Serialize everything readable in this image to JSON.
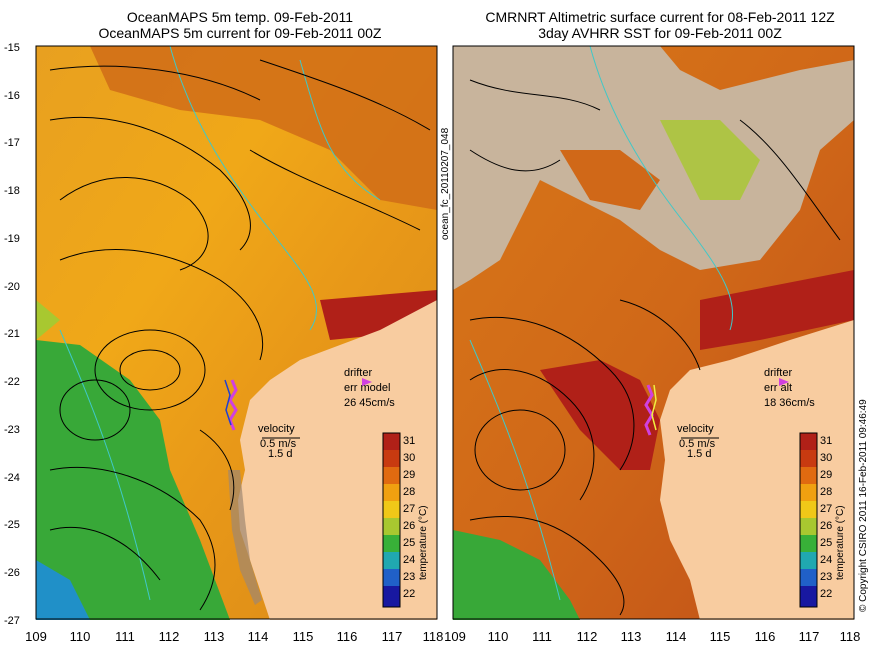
{
  "left_panel": {
    "title_line1": "OceanMAPS 5m temp. 09-Feb-2011",
    "title_line2": "OceanMAPS 5m current for 09-Feb-2011 00Z",
    "drifter_label": "drifter",
    "err_label": "err model",
    "err_value": "26 45cm/s",
    "velocity_label": "velocity",
    "velocity_scale": "0.5 m/s",
    "velocity_time": "1.5 d"
  },
  "right_panel": {
    "title_line1": "CMRNRT Altimetric surface current for 08-Feb-2011 12Z",
    "title_line2": "3day AVHRR SST for 09-Feb-2011 00Z",
    "drifter_label": "drifter",
    "err_label": "err alt",
    "err_value": "18 36cm/s",
    "velocity_label": "velocity",
    "velocity_scale": "0.5 m/s",
    "velocity_time": "1.5 d"
  },
  "y_axis_ticks": [
    "-15",
    "-16",
    "-17",
    "-18",
    "-19",
    "-20",
    "-21",
    "-22",
    "-23",
    "-24",
    "-25",
    "-26",
    "-27"
  ],
  "x_axis_ticks": [
    "109",
    "110",
    "111",
    "112",
    "113",
    "114",
    "115",
    "116",
    "117",
    "118"
  ],
  "colorbar": {
    "ticks": [
      "31",
      "30",
      "29",
      "28",
      "27",
      "26",
      "25",
      "24",
      "23",
      "22"
    ],
    "label": "temperature (°C)",
    "colors": [
      "#b02018",
      "#c83a10",
      "#e06a10",
      "#f0a010",
      "#f0c818",
      "#a8c830",
      "#38b038",
      "#20a8b0",
      "#2060c8",
      "#1818a0"
    ]
  },
  "side_id": "ocean_fc_20110207_048",
  "copyright": "© Copyright CSIRO 2011   16-Feb-2011 09:46:49",
  "colors": {
    "land": "#f8cca0",
    "cloud": "#c8b49c",
    "current_arrow": "#000000",
    "isobath": "#40c8c8",
    "drifter_track": "#d040e0"
  }
}
